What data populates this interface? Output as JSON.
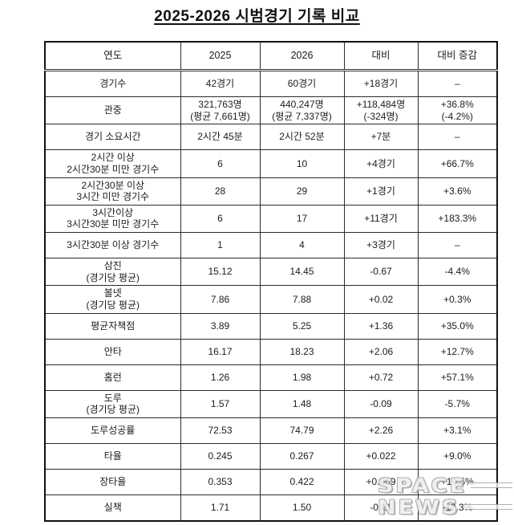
{
  "title": "2025-2026 시범경기 기록 비교",
  "watermark": {
    "line1": "SPACE",
    "line2": "NEWS"
  },
  "colors": {
    "text": "#1c1c1c",
    "border": "#2a2a2a",
    "background": "#ffffff",
    "watermark_fill": "#ffffff",
    "watermark_outline": "#a8a8a8"
  },
  "chart_data": {
    "type": "table",
    "title": "2025-2026 시범경기 기록 비교",
    "headers": [
      "연도",
      "2025",
      "2026",
      "대비",
      "대비 증감"
    ],
    "rows": [
      {
        "label": [
          "경기수"
        ],
        "y2025": [
          "42경기"
        ],
        "y2026": [
          "60경기"
        ],
        "diff": [
          "+18경기"
        ],
        "change": [
          "–"
        ]
      },
      {
        "label": [
          "관중"
        ],
        "y2025": [
          "321,763명",
          "(평균 7,661명)"
        ],
        "y2026": [
          "440,247명",
          "(평균 7,337명)"
        ],
        "diff": [
          "+118,484명",
          "(-324명)"
        ],
        "change": [
          "+36.8%",
          "(-4.2%)"
        ]
      },
      {
        "label": [
          "경기 소요시간"
        ],
        "y2025": [
          "2시간 45분"
        ],
        "y2026": [
          "2시간 52분"
        ],
        "diff": [
          "+7분"
        ],
        "change": [
          "–"
        ]
      },
      {
        "label": [
          "2시간 이상",
          "2시간30분 미만 경기수"
        ],
        "y2025": [
          "6"
        ],
        "y2026": [
          "10"
        ],
        "diff": [
          "+4경기"
        ],
        "change": [
          "+66.7%"
        ]
      },
      {
        "label": [
          "2시간30분 이상",
          "3시간 미만 경기수"
        ],
        "y2025": [
          "28"
        ],
        "y2026": [
          "29"
        ],
        "diff": [
          "+1경기"
        ],
        "change": [
          "+3.6%"
        ]
      },
      {
        "label": [
          "3시간이상",
          "3시간30분 미만 경기수"
        ],
        "y2025": [
          "6"
        ],
        "y2026": [
          "17"
        ],
        "diff": [
          "+11경기"
        ],
        "change": [
          "+183.3%"
        ]
      },
      {
        "label": [
          "3시간30분 이상 경기수"
        ],
        "y2025": [
          "1"
        ],
        "y2026": [
          "4"
        ],
        "diff": [
          "+3경기"
        ],
        "change": [
          "–"
        ]
      },
      {
        "label": [
          "삼진",
          "(경기당 평균)"
        ],
        "y2025": [
          "15.12"
        ],
        "y2026": [
          "14.45"
        ],
        "diff": [
          "-0.67"
        ],
        "change": [
          "-4.4%"
        ]
      },
      {
        "label": [
          "볼넷",
          "(경기당 평균)"
        ],
        "y2025": [
          "7.86"
        ],
        "y2026": [
          "7.88"
        ],
        "diff": [
          "+0.02"
        ],
        "change": [
          "+0.3%"
        ]
      },
      {
        "label": [
          "평균자책점"
        ],
        "y2025": [
          "3.89"
        ],
        "y2026": [
          "5.25"
        ],
        "diff": [
          "+1.36"
        ],
        "change": [
          "+35.0%"
        ]
      },
      {
        "label": [
          "안타"
        ],
        "y2025": [
          "16.17"
        ],
        "y2026": [
          "18.23"
        ],
        "diff": [
          "+2.06"
        ],
        "change": [
          "+12.7%"
        ]
      },
      {
        "label": [
          "홈런"
        ],
        "y2025": [
          "1.26"
        ],
        "y2026": [
          "1.98"
        ],
        "diff": [
          "+0.72"
        ],
        "change": [
          "+57.1%"
        ]
      },
      {
        "label": [
          "도루",
          "(경기당 평균)"
        ],
        "y2025": [
          "1.57"
        ],
        "y2026": [
          "1.48"
        ],
        "diff": [
          "-0.09"
        ],
        "change": [
          "-5.7%"
        ]
      },
      {
        "label": [
          "도루성공률"
        ],
        "y2025": [
          "72.53"
        ],
        "y2026": [
          "74.79"
        ],
        "diff": [
          "+2.26"
        ],
        "change": [
          "+3.1%"
        ]
      },
      {
        "label": [
          "타율"
        ],
        "y2025": [
          "0.245"
        ],
        "y2026": [
          "0.267"
        ],
        "diff": [
          "+0.022"
        ],
        "change": [
          "+9.0%"
        ]
      },
      {
        "label": [
          "장타율"
        ],
        "y2025": [
          "0.353"
        ],
        "y2026": [
          "0.422"
        ],
        "diff": [
          "+0.069"
        ],
        "change": [
          "+19.5%"
        ]
      },
      {
        "label": [
          "실책"
        ],
        "y2025": [
          "1.71"
        ],
        "y2026": [
          "1.50"
        ],
        "diff": [
          "-0.21"
        ],
        "change": [
          "-12.3%"
        ]
      }
    ]
  }
}
